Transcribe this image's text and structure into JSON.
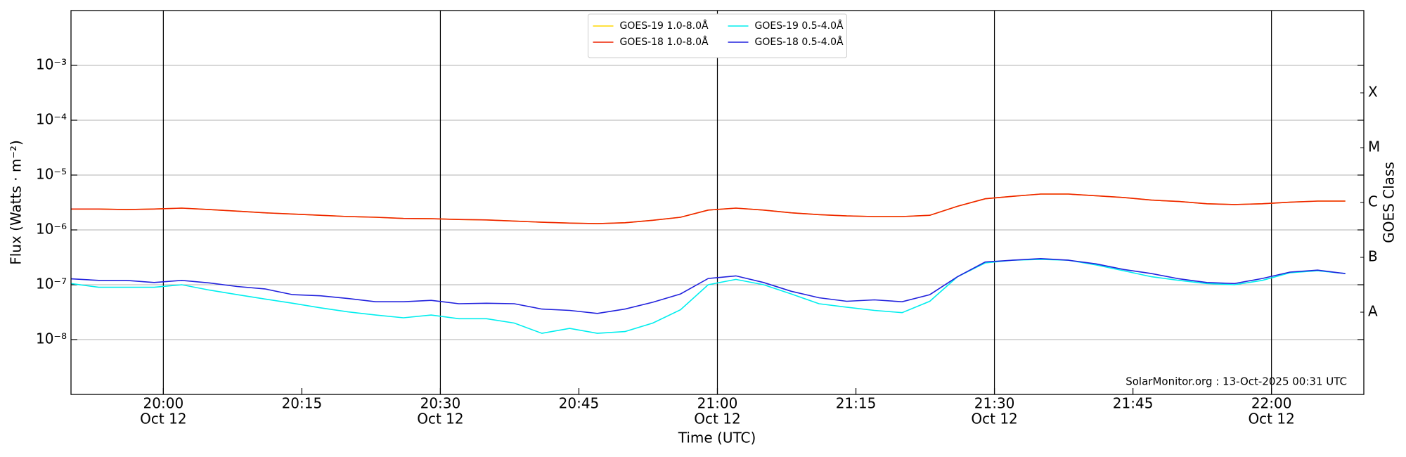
{
  "chart_data": {
    "type": "line",
    "xlabel": "Time (UTC)",
    "ylabel": "Flux (Watts · m⁻²)",
    "y2label": "GOES Class",
    "annotation": "SolarMonitor.org : 13-Oct-2025 00:31 UTC",
    "yscale": "log",
    "legend": "upper center",
    "grid": true,
    "xlim": [
      "19:50",
      "22:10"
    ],
    "xticks": [
      "20:00",
      "20:15",
      "20:30",
      "20:45",
      "21:00",
      "21:15",
      "21:30",
      "21:45",
      "22:00"
    ],
    "xtick_dates": [
      "Oct 12",
      null,
      "Oct 12",
      null,
      "Oct 12",
      null,
      "Oct 12",
      null,
      "Oct 12"
    ],
    "ylim": [
      1e-09,
      0.01
    ],
    "yticks": [
      {
        "value": 1e-08,
        "label": "10⁻⁸"
      },
      {
        "value": 1e-07,
        "label": "10⁻⁷"
      },
      {
        "value": 1e-06,
        "label": "10⁻⁶"
      },
      {
        "value": 1e-05,
        "label": "10⁻⁵"
      },
      {
        "value": 0.0001,
        "label": "10⁻⁴"
      },
      {
        "value": 0.001,
        "label": "10⁻³"
      }
    ],
    "y2lim": [
      1e-09,
      0.01
    ],
    "y2ticks": [
      {
        "value": 3.16e-08,
        "label": "A"
      },
      {
        "value": 3.16e-07,
        "label": "B"
      },
      {
        "value": 3.16e-06,
        "label": "C"
      },
      {
        "value": 3.16e-05,
        "label": "M"
      },
      {
        "value": 0.000316,
        "label": "X"
      }
    ],
    "x": [
      "19:50",
      "19:53",
      "19:56",
      "19:59",
      "20:02",
      "20:05",
      "20:08",
      "20:11",
      "20:14",
      "20:17",
      "20:20",
      "20:23",
      "20:26",
      "20:29",
      "20:32",
      "20:35",
      "20:38",
      "20:41",
      "20:44",
      "20:47",
      "20:50",
      "20:53",
      "20:56",
      "20:59",
      "21:02",
      "21:05",
      "21:08",
      "21:11",
      "21:14",
      "21:17",
      "21:20",
      "21:23",
      "21:26",
      "21:29",
      "21:32",
      "21:35",
      "21:38",
      "21:41",
      "21:44",
      "21:47",
      "21:50",
      "21:53",
      "21:56",
      "21:59",
      "22:02",
      "22:05",
      "22:08"
    ],
    "series": [
      {
        "name": "GOES-19 1.0-8.0Å",
        "color": "#ffd700",
        "values": [
          2.4e-06,
          2.4e-06,
          2.35e-06,
          2.4e-06,
          2.5e-06,
          2.35e-06,
          2.2e-06,
          2.05e-06,
          1.95e-06,
          1.85e-06,
          1.75e-06,
          1.7e-06,
          1.62e-06,
          1.6e-06,
          1.55e-06,
          1.52e-06,
          1.45e-06,
          1.38e-06,
          1.33e-06,
          1.3e-06,
          1.35e-06,
          1.5e-06,
          1.7e-06,
          2.3e-06,
          2.5e-06,
          2.3e-06,
          2.05e-06,
          1.9e-06,
          1.8e-06,
          1.75e-06,
          1.75e-06,
          1.85e-06,
          2.7e-06,
          3.7e-06,
          4.1e-06,
          4.5e-06,
          4.5e-06,
          4.2e-06,
          3.9e-06,
          3.5e-06,
          3.3e-06,
          3e-06,
          2.9e-06,
          3e-06,
          3.2e-06,
          3.35e-06,
          3.35e-06
        ]
      },
      {
        "name": "GOES-18 1.0-8.0Å",
        "color": "#ee2200",
        "values": [
          2.4e-06,
          2.4e-06,
          2.35e-06,
          2.4e-06,
          2.5e-06,
          2.35e-06,
          2.2e-06,
          2.05e-06,
          1.95e-06,
          1.85e-06,
          1.75e-06,
          1.7e-06,
          1.62e-06,
          1.6e-06,
          1.55e-06,
          1.52e-06,
          1.45e-06,
          1.38e-06,
          1.33e-06,
          1.3e-06,
          1.35e-06,
          1.5e-06,
          1.7e-06,
          2.3e-06,
          2.5e-06,
          2.3e-06,
          2.05e-06,
          1.9e-06,
          1.8e-06,
          1.75e-06,
          1.75e-06,
          1.85e-06,
          2.7e-06,
          3.7e-06,
          4.1e-06,
          4.5e-06,
          4.5e-06,
          4.2e-06,
          3.9e-06,
          3.5e-06,
          3.3e-06,
          3e-06,
          2.9e-06,
          3e-06,
          3.2e-06,
          3.35e-06,
          3.35e-06
        ]
      },
      {
        "name": "GOES-19 0.5-4.0Å",
        "color": "#00eeee",
        "values": [
          1.05e-07,
          9e-08,
          9e-08,
          9e-08,
          1e-07,
          8e-08,
          6.6e-08,
          5.5e-08,
          4.6e-08,
          3.8e-08,
          3.2e-08,
          2.8e-08,
          2.5e-08,
          2.8e-08,
          2.4e-08,
          2.4e-08,
          2e-08,
          1.3e-08,
          1.6e-08,
          1.3e-08,
          1.4e-08,
          2e-08,
          3.5e-08,
          1e-07,
          1.25e-07,
          1e-07,
          6.8e-08,
          4.5e-08,
          3.9e-08,
          3.4e-08,
          3.1e-08,
          5e-08,
          1.4e-07,
          2.5e-07,
          2.8e-07,
          2.9e-07,
          2.8e-07,
          2.3e-07,
          1.8e-07,
          1.4e-07,
          1.2e-07,
          1.05e-07,
          1e-07,
          1.2e-07,
          1.65e-07,
          1.8e-07,
          1.6e-07
        ]
      },
      {
        "name": "GOES-18 0.5-4.0Å",
        "color": "#2222dd",
        "values": [
          1.28e-07,
          1.2e-07,
          1.2e-07,
          1.1e-07,
          1.2e-07,
          1.08e-07,
          9.3e-08,
          8.4e-08,
          6.6e-08,
          6.3e-08,
          5.6e-08,
          4.9e-08,
          4.9e-08,
          5.2e-08,
          4.5e-08,
          4.6e-08,
          4.5e-08,
          3.6e-08,
          3.4e-08,
          3e-08,
          3.6e-08,
          4.8e-08,
          6.8e-08,
          1.3e-07,
          1.45e-07,
          1.1e-07,
          7.6e-08,
          5.8e-08,
          5e-08,
          5.3e-08,
          4.9e-08,
          6.6e-08,
          1.4e-07,
          2.6e-07,
          2.8e-07,
          3e-07,
          2.8e-07,
          2.4e-07,
          1.9e-07,
          1.6e-07,
          1.28e-07,
          1.1e-07,
          1.05e-07,
          1.3e-07,
          1.7e-07,
          1.85e-07,
          1.6e-07
        ]
      }
    ]
  }
}
